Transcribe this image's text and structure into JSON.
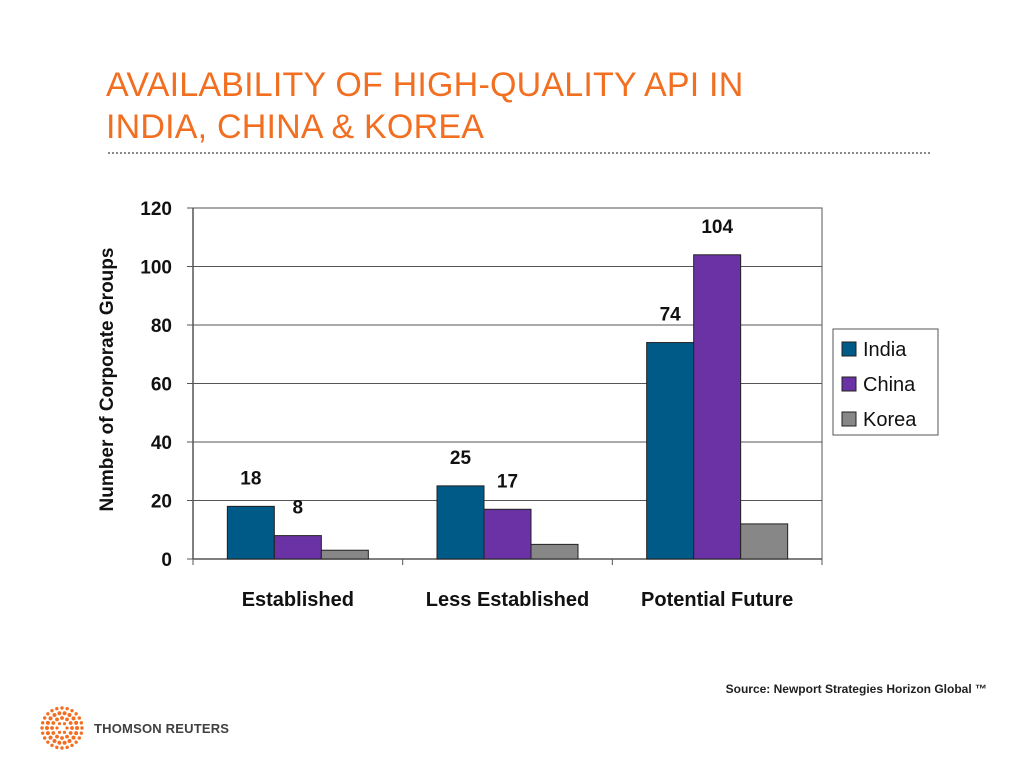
{
  "slide": {
    "title_lines": [
      "AVAILABILITY OF HIGH-QUALITY API IN",
      "INDIA, CHINA & KOREA"
    ],
    "source": "Source: Newport Strategies Horizon Global ™",
    "brand": "THOMSON REUTERS",
    "accent_color": "#f26f21"
  },
  "chart_data": {
    "type": "bar",
    "categories": [
      "Established",
      "Less Established",
      "Potential Future"
    ],
    "series": [
      {
        "name": "India",
        "color": "#005a87",
        "values": [
          18,
          25,
          74
        ],
        "labels": [
          "18",
          "25",
          "74"
        ]
      },
      {
        "name": "China",
        "color": "#6a32a4",
        "values": [
          8,
          17,
          104
        ],
        "labels": [
          "8",
          "17",
          "104"
        ]
      },
      {
        "name": "Korea",
        "color": "#878787",
        "values": [
          3,
          5,
          12
        ],
        "labels": [
          "",
          "",
          ""
        ]
      }
    ],
    "ylabel": "Number of Corporate Groups",
    "xlabel": "",
    "ylim": [
      0,
      120
    ],
    "yticks": [
      0,
      20,
      40,
      60,
      80,
      100,
      120
    ],
    "grid": true,
    "legend": "right"
  }
}
